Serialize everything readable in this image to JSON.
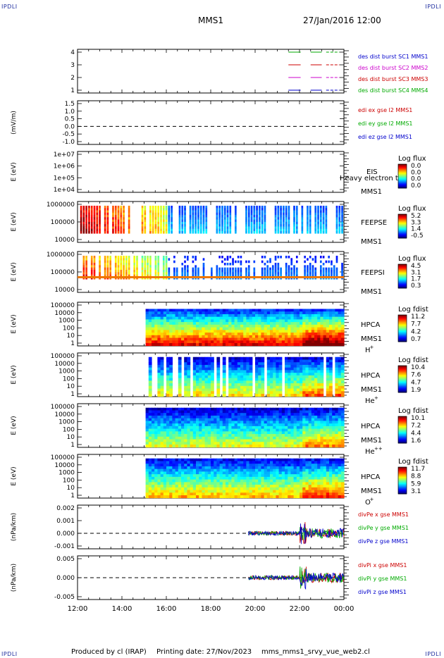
{
  "header": {
    "corner_tl": "IPDLI",
    "corner_tr": "IPDLI",
    "corner_bl": "IPDLI",
    "corner_br": "IPDLI",
    "mission": "MMS1",
    "datetime": "27/Jan/2016 12:00"
  },
  "footer": {
    "produced_by": "Produced by cl (IRAP)",
    "printing_date": "Printing date: 27/Nov/2023",
    "filename": "mms_mms1_srvy_vue_web2.cl"
  },
  "colors": {
    "blue": "#0000cc",
    "magenta": "#cc00cc",
    "red": "#cc0000",
    "green": "#00aa00"
  },
  "chart_data": [
    {
      "type": "line",
      "panel": "des_dist_burst",
      "yticks": [
        "4",
        "3",
        "2",
        "1"
      ],
      "series": [
        {
          "name": "des dist burst SC1 MMS1",
          "color": "#0000cc",
          "level": 1
        },
        {
          "name": "des dist burst SC2 MMS2",
          "color": "#cc00cc",
          "level": 2
        },
        {
          "name": "des dist burst SC3 MMS3",
          "color": "#cc0000",
          "level": 3
        },
        {
          "name": "des dist burst SC4 MMS4",
          "color": "#00aa00",
          "level": 4
        }
      ]
    },
    {
      "type": "line",
      "panel": "edi_e",
      "ylabel": "(mV/m)",
      "yticks": [
        "1.5",
        "1.0",
        "0.5",
        "0.0",
        "-0.5",
        "-1.0"
      ],
      "series": [
        {
          "name": "edi ex gse l2 MMS1",
          "color": "#cc0000"
        },
        {
          "name": "edi ey gse l2 MMS1",
          "color": "#00aa00"
        },
        {
          "name": "edi ez gse l2 MMS1",
          "color": "#0000cc"
        }
      ]
    },
    {
      "type": "heatmap",
      "panel": "eis",
      "ylabel": "E (eV)",
      "yticks": [
        "1e+07",
        "1e+06",
        "1e+05",
        "1e+04"
      ],
      "instrument": "EIS",
      "spacecraft": "MMS1",
      "overlay_text": "Heavy electron to",
      "cbar_title": "Log flux",
      "cbar_ticks": [
        "0.0",
        "0.0",
        "0.0",
        "0.0"
      ]
    },
    {
      "type": "heatmap",
      "panel": "feeps_e",
      "ylabel": "E (eV)",
      "yticks": [
        "1000000",
        "100000",
        "10000"
      ],
      "instrument": "FEEPSE",
      "spacecraft": "MMS1",
      "cbar_title": "Log flux",
      "cbar_ticks": [
        "5.2",
        "3.3",
        "1.4",
        "-0.5"
      ]
    },
    {
      "type": "heatmap",
      "panel": "feeps_i",
      "ylabel": "E (eV)",
      "yticks": [
        "1000000",
        "100000",
        "10000"
      ],
      "instrument": "FEEPSI",
      "spacecraft": "MMS1",
      "cbar_title": "Log flux",
      "cbar_ticks": [
        "4.5",
        "3.1",
        "1.7",
        "0.3"
      ]
    },
    {
      "type": "heatmap",
      "panel": "hpca_h",
      "ylabel": "E (eV)",
      "yticks": [
        "100000",
        "10000",
        "1000",
        "100",
        "10",
        "1"
      ],
      "instrument": "HPCA",
      "spacecraft": "MMS1",
      "species": "H",
      "species_sup": "+",
      "cbar_title": "Log fdist",
      "cbar_ticks": [
        "11.2",
        "7.7",
        "4.2",
        "0.7"
      ]
    },
    {
      "type": "heatmap",
      "panel": "hpca_he1",
      "ylabel": "E (eV)",
      "yticks": [
        "100000",
        "10000",
        "1000",
        "100",
        "10",
        "1"
      ],
      "instrument": "HPCA",
      "spacecraft": "MMS1",
      "species": "He",
      "species_sup": "+",
      "cbar_title": "Log fdist",
      "cbar_ticks": [
        "10.4",
        "7.6",
        "4.7",
        "1.9"
      ]
    },
    {
      "type": "heatmap",
      "panel": "hpca_he2",
      "ylabel": "E (eV)",
      "yticks": [
        "100000",
        "10000",
        "1000",
        "100",
        "10",
        "1"
      ],
      "instrument": "HPCA",
      "spacecraft": "MMS1",
      "species": "He",
      "species_sup": "++",
      "cbar_title": "Log fdist",
      "cbar_ticks": [
        "10.1",
        "7.2",
        "4.4",
        "1.6"
      ]
    },
    {
      "type": "heatmap",
      "panel": "hpca_o",
      "ylabel": "E (eV)",
      "yticks": [
        "100000",
        "10000",
        "1000",
        "100",
        "10",
        "1"
      ],
      "instrument": "HPCA",
      "spacecraft": "MMS1",
      "species": "O",
      "species_sup": "+",
      "cbar_title": "Log fdist",
      "cbar_ticks": [
        "11.7",
        "8.8",
        "5.9",
        "3.1"
      ]
    },
    {
      "type": "line",
      "panel": "divpe",
      "ylabel": "(nPa/km)",
      "yticks": [
        "0.002",
        "0.001",
        "0.000",
        "-0.001"
      ],
      "series": [
        {
          "name": "divPe x gse MMS1",
          "color": "#cc0000"
        },
        {
          "name": "divPe y gse MMS1",
          "color": "#00aa00"
        },
        {
          "name": "divPe z gse MMS1",
          "color": "#0000cc"
        }
      ]
    },
    {
      "type": "line",
      "panel": "divpi",
      "ylabel": "(nPa/km)",
      "yticks": [
        "0.005",
        "0.000",
        "-0.005"
      ],
      "series": [
        {
          "name": "divPi x gse MMS1",
          "color": "#cc0000"
        },
        {
          "name": "divPi y gse MMS1",
          "color": "#00aa00"
        },
        {
          "name": "divPi z gse MMS1",
          "color": "#0000cc"
        }
      ]
    }
  ],
  "xaxis": {
    "ticks": [
      "12:00",
      "14:00",
      "16:00",
      "18:00",
      "20:00",
      "22:00",
      "00:00"
    ]
  }
}
